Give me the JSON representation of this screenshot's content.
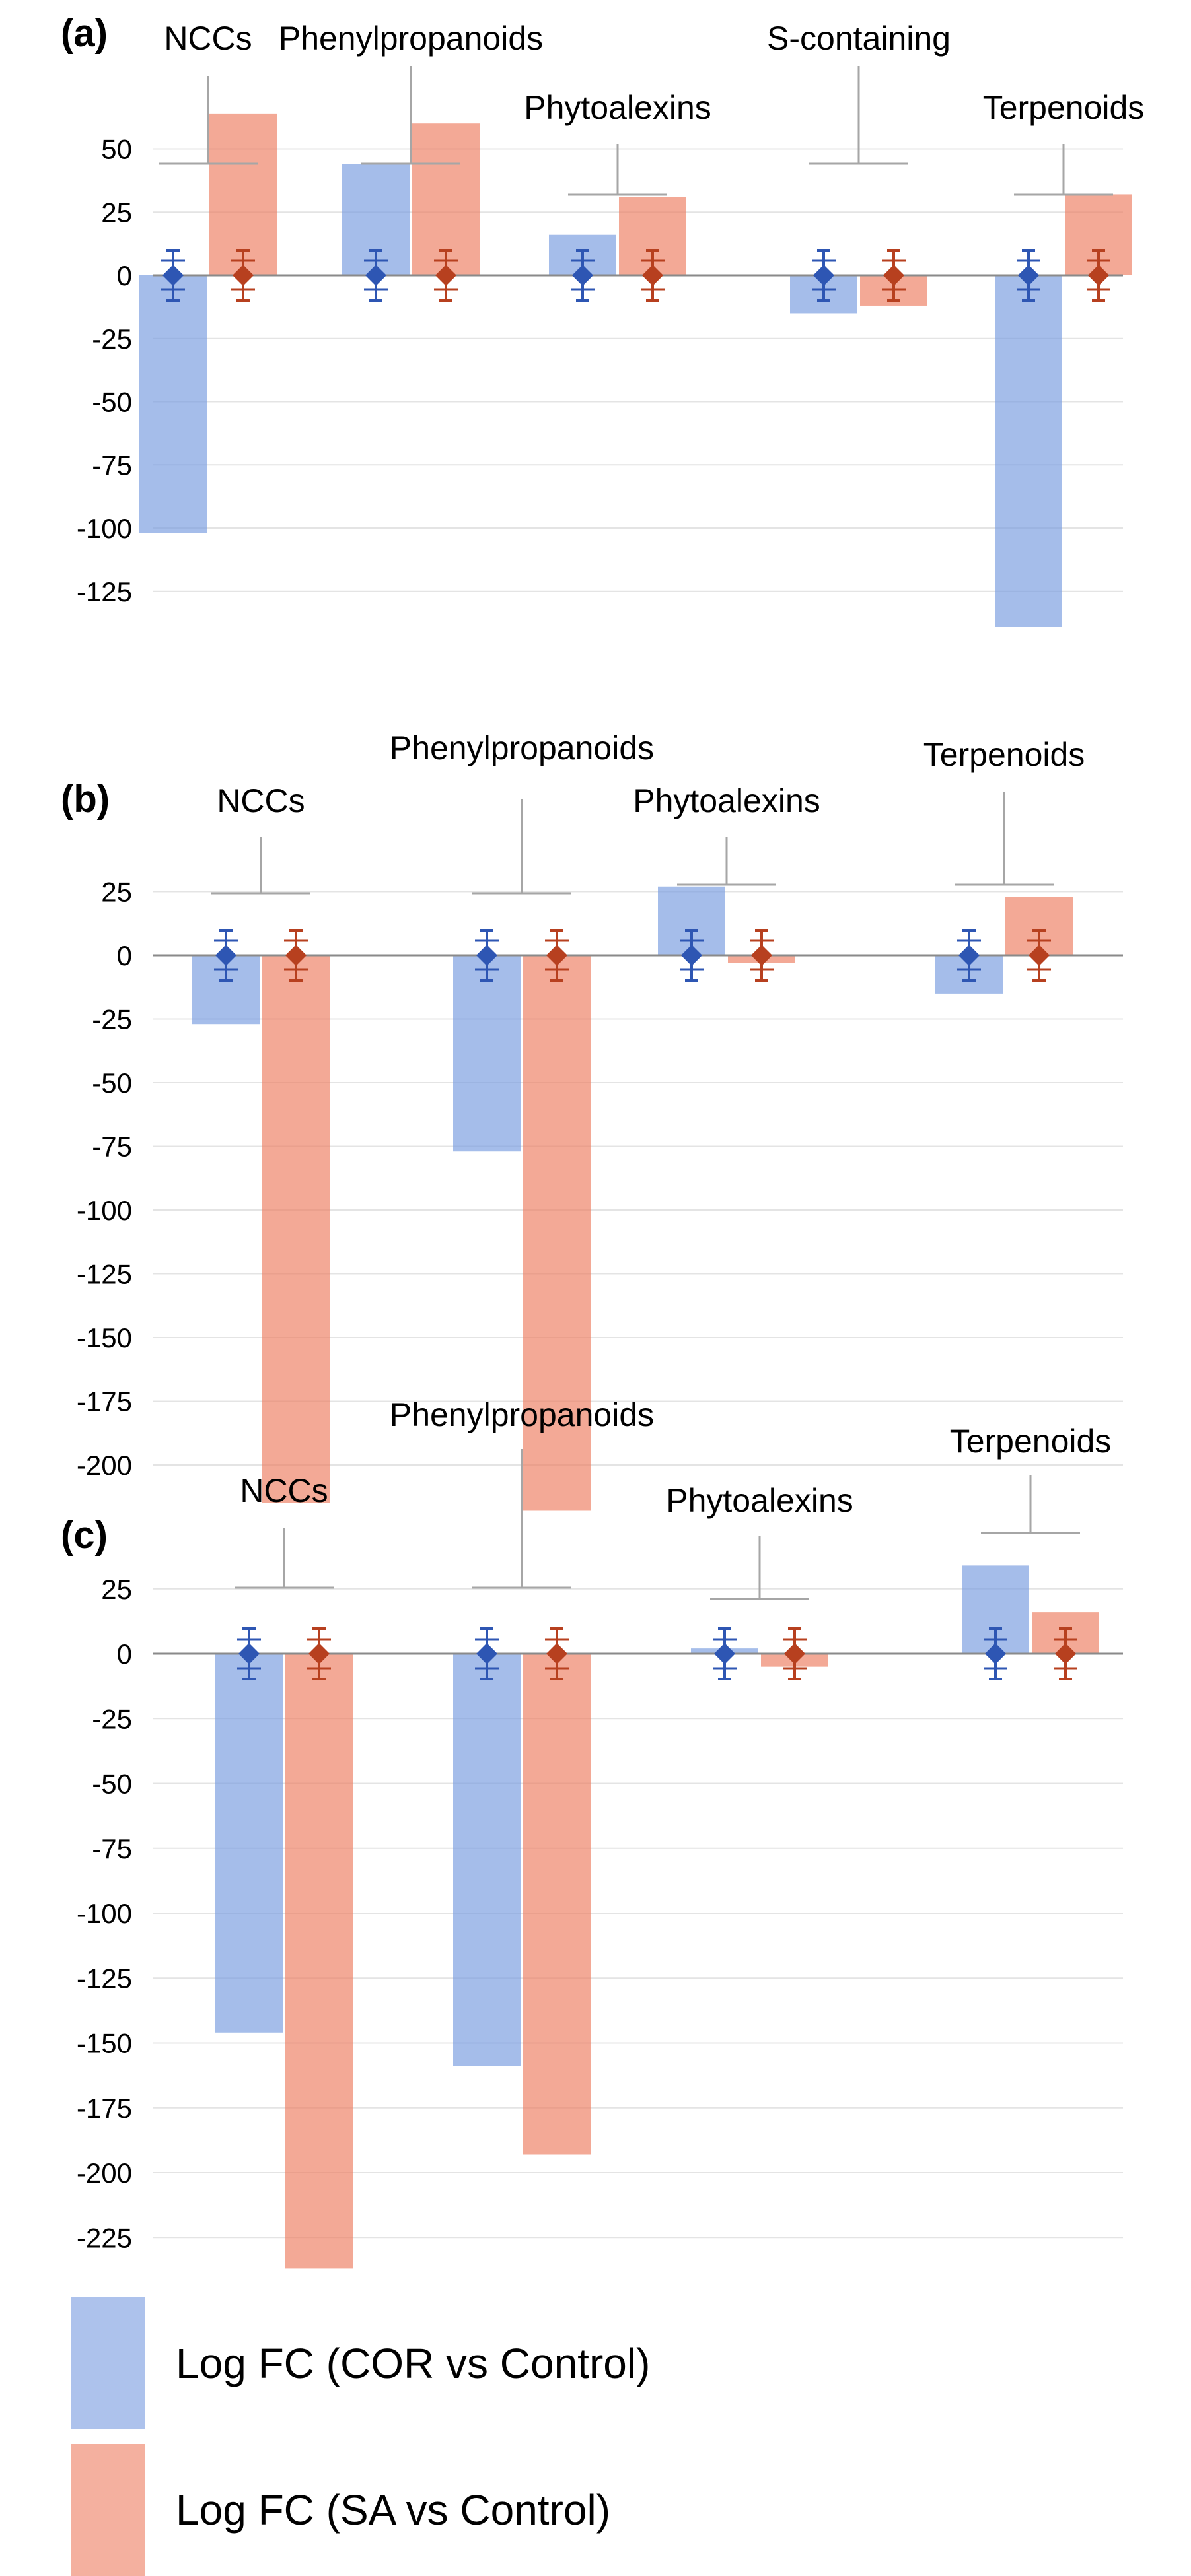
{
  "colors": {
    "cor": "#7b9de0",
    "sa": "#ed8064",
    "cor_marker": "#2e56b3",
    "sa_marker": "#b7401f",
    "grid": "#e4e4e4",
    "axis": "#8a8a8a",
    "bracket": "#a6a6a6"
  },
  "legend": {
    "cor_label": "Log FC (COR vs Control)",
    "sa_label": "Log FC (SA vs Control)"
  },
  "chart_data": [
    {
      "type": "bar",
      "panel_label": "(a)",
      "categories": [
        "NCCs",
        "Phenylpropanoids",
        "Phytoalexins",
        "S-containing",
        "Terpenoids"
      ],
      "series": [
        {
          "name": "Log FC (COR vs Control)",
          "values": [
            -102,
            44,
            16,
            -15,
            -139
          ]
        },
        {
          "name": "Log FC (SA vs Control)",
          "values": [
            64,
            60,
            31,
            -12,
            32
          ]
        }
      ],
      "yticks": [
        50,
        25,
        0,
        -25,
        -50,
        -75,
        -100,
        -125
      ],
      "ylim": [
        -140,
        65
      ],
      "grid": true,
      "error_bars": "symmetric markers near zero for each bar"
    },
    {
      "type": "bar",
      "panel_label": "(b)",
      "categories": [
        "NCCs",
        "Phenylpropanoids",
        "Phytoalexins",
        "Terpenoids"
      ],
      "series": [
        {
          "name": "Log FC (COR vs Control)",
          "values": [
            -27,
            -77,
            27,
            -15
          ]
        },
        {
          "name": "Log FC (SA vs Control)",
          "values": [
            -215,
            -218,
            -3,
            23
          ]
        }
      ],
      "yticks": [
        25,
        0,
        -25,
        -50,
        -75,
        -100,
        -125,
        -150,
        -175,
        -200
      ],
      "ylim": [
        -220,
        30
      ],
      "grid": true,
      "error_bars": "symmetric markers near zero for each bar"
    },
    {
      "type": "bar",
      "panel_label": "(c)",
      "categories": [
        "NCCs",
        "Phenylpropanoids",
        "Phytoalexins",
        "Terpenoids"
      ],
      "series": [
        {
          "name": "Log FC (COR vs Control)",
          "values": [
            -146,
            -159,
            2,
            34
          ]
        },
        {
          "name": "Log FC (SA vs Control)",
          "values": [
            -237,
            -193,
            -5,
            16
          ]
        }
      ],
      "yticks": [
        25,
        0,
        -25,
        -50,
        -75,
        -100,
        -125,
        -150,
        -175,
        -200,
        -225
      ],
      "ylim": [
        -240,
        35
      ],
      "grid": true,
      "error_bars": "symmetric markers near zero for each bar"
    }
  ]
}
